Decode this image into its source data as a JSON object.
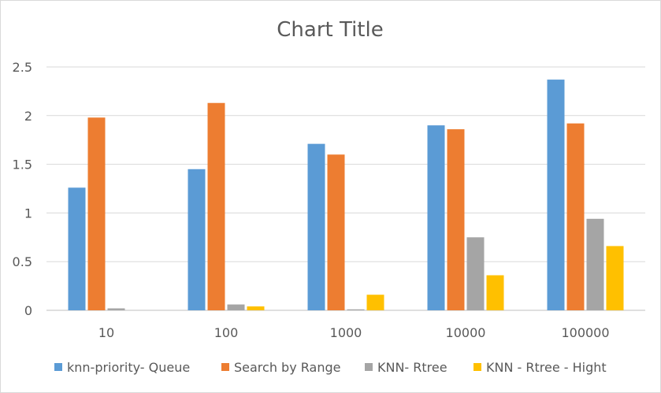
{
  "chart_data": {
    "type": "bar",
    "title": "Chart Title",
    "xlabel": "",
    "ylabel": "",
    "categories": [
      "10",
      "100",
      "1000",
      "10000",
      "100000"
    ],
    "series": [
      {
        "name": "knn-priority- Queue",
        "color": "#5b9bd5",
        "values": [
          1.26,
          1.45,
          1.71,
          1.9,
          2.37
        ]
      },
      {
        "name": "Search by Range",
        "color": "#ed7d31",
        "values": [
          1.98,
          2.13,
          1.6,
          1.86,
          1.92
        ]
      },
      {
        "name": "KNN- Rtree",
        "color": "#a5a5a5",
        "values": [
          0.02,
          0.06,
          0.01,
          0.75,
          0.94
        ]
      },
      {
        "name": "KNN - Rtree - Hight",
        "color": "#ffc000",
        "values": [
          0.0,
          0.04,
          0.16,
          0.36,
          0.66
        ]
      }
    ],
    "ylim": [
      0,
      2.5
    ],
    "yticks": [
      "0",
      "0.5",
      "1",
      "1.5",
      "2",
      "2.5"
    ],
    "grid": true,
    "legend_position": "bottom"
  }
}
